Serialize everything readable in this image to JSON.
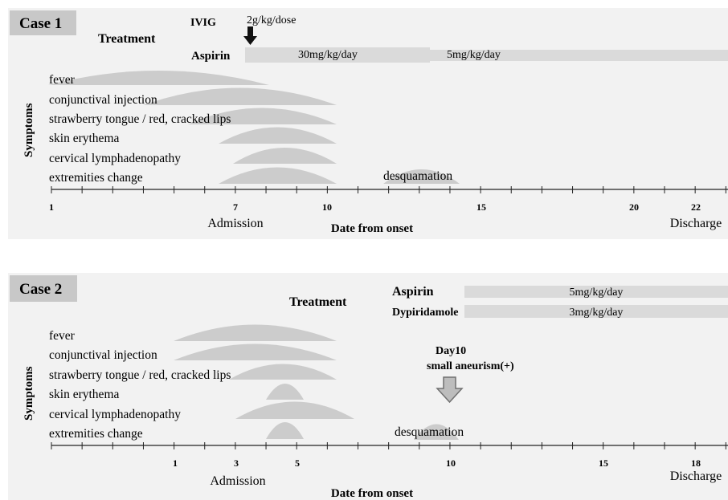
{
  "case1": {
    "title": "Case 1",
    "treatment_label": "Treatment",
    "ivig_label": "IVIG",
    "ivig_dose": "2g/kg/dose",
    "aspirin_label": "Aspirin",
    "aspirin_high_dose": "30mg/kg/day",
    "aspirin_low_dose": "5mg/kg/day",
    "symptoms_label": "Symptoms",
    "symptoms": [
      "fever",
      "conjunctival injection",
      "strawberry tongue / red, cracked lips",
      "skin erythema",
      "cervical lymphadenopathy",
      "extremities change"
    ],
    "desquamation_label": "desquamation",
    "tick_labels": [
      "1",
      "7",
      "10",
      "15",
      "20",
      "22"
    ],
    "admission_label": "Admission",
    "axis_label": "Date from onset",
    "discharge_label": "Discharge"
  },
  "case2": {
    "title": "Case 2",
    "treatment_label": "Treatment",
    "aspirin_label": "Aspirin",
    "aspirin_dose": "5mg/kg/day",
    "dypiridamole_label": "Dypiridamole",
    "dypiridamole_dose": "3mg/kg/day",
    "event_day": "Day10",
    "event_text": "small aneurism(+)",
    "symptoms_label": "Symptoms",
    "symptoms": [
      "fever",
      "conjunctival injection",
      "strawberry tongue / red, cracked lips",
      "skin erythema",
      "cervical lymphadenopathy",
      "extremities change"
    ],
    "desquamation_label": "desquamation",
    "tick_labels": [
      "1",
      "3",
      "5",
      "10",
      "15",
      "18"
    ],
    "admission_label": "Admission",
    "axis_label": "Date from onset",
    "discharge_label": "Discharge"
  },
  "colors": {
    "panel_bg": "#f2f2f2",
    "title_box": "#c8c8c8",
    "symptom_shape": "#cccccc",
    "treatment_bar": "#dadada",
    "axis": "#222222"
  }
}
